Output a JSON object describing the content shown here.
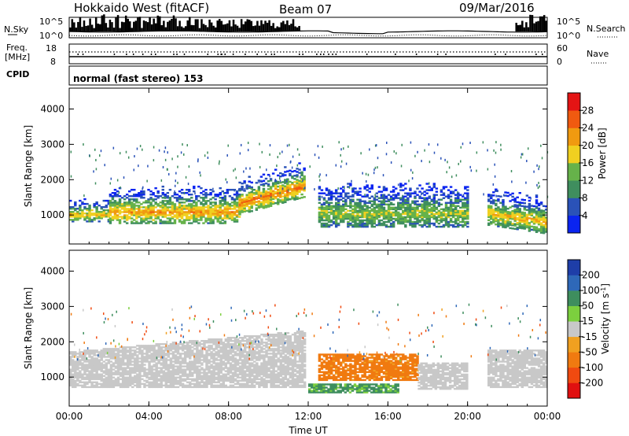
{
  "header": {
    "station": "Hokkaido West (fitACF)",
    "beam": "Beam 07",
    "date": "09/Mar/2016"
  },
  "sky_panel": {
    "left_label": "N.Sky",
    "left_ticks": [
      "10^5",
      "10^0"
    ],
    "right_ticks": [
      "10^5",
      "10^0"
    ],
    "right_label": "N.Search"
  },
  "freq_panel": {
    "left_label_1": "Freq.",
    "left_label_2": "[MHz]",
    "left_ticks": [
      "18",
      "8"
    ],
    "right_ticks": [
      "60",
      "0"
    ],
    "right_label": "Nave"
  },
  "cpid_panel": {
    "label": "CPID",
    "mode": "normal (fast stereo) 153"
  },
  "chart_data": [
    {
      "type": "heatmap",
      "name": "power",
      "ylabel": "Slant Range [km]",
      "xlabel": "Time UT",
      "xlim": [
        0,
        24
      ],
      "ylim": [
        180,
        4590
      ],
      "x_ticks": [
        "00:00",
        "04:00",
        "08:00",
        "12:00",
        "16:00",
        "20:00",
        "00:00"
      ],
      "y_ticks": [
        1000,
        2000,
        3000,
        4000
      ],
      "colorbar": {
        "label": "Power [dB]",
        "ticks": [
          4,
          8,
          12,
          16,
          20,
          24,
          28
        ],
        "colors": [
          "#0a24f0",
          "#2a52b8",
          "#3f8e5e",
          "#66b24a",
          "#f0d020",
          "#f09a10",
          "#f05a10",
          "#e41414"
        ]
      },
      "bands": [
        {
          "t0": 0.0,
          "t1": 2.0,
          "r0": 800,
          "r1": 1450,
          "peak": 20
        },
        {
          "t0": 2.0,
          "t1": 8.5,
          "r0": 750,
          "r1": 1800,
          "peak": 22
        },
        {
          "t0": 8.5,
          "t1": 11.8,
          "r0": 1000,
          "r1": 2000,
          "peak": 24
        },
        {
          "t0": 12.5,
          "t1": 20.0,
          "r0": 650,
          "r1": 1900,
          "peak": 16
        },
        {
          "t0": 21.0,
          "t1": 24.0,
          "r0": 700,
          "r1": 1750,
          "peak": 20
        }
      ]
    },
    {
      "type": "heatmap",
      "name": "velocity",
      "ylabel": "Slant Range [km]",
      "xlabel": "Time UT",
      "xlim": [
        0,
        24
      ],
      "ylim": [
        180,
        4590
      ],
      "x_ticks": [
        "00:00",
        "04:00",
        "08:00",
        "12:00",
        "16:00",
        "20:00",
        "00:00"
      ],
      "y_ticks": [
        1000,
        2000,
        3000,
        4000
      ],
      "colorbar": {
        "label": "Velocity [m s-1]",
        "ticks": [
          200,
          100,
          50,
          15,
          -15,
          -50,
          -100,
          -200
        ],
        "colors": [
          "#1e3ea8",
          "#2e68b8",
          "#3e8e5e",
          "#7ccf3e",
          "#c8c8c8",
          "#f0a020",
          "#f07a10",
          "#f04a10",
          "#e01010"
        ]
      },
      "bands": [
        {
          "t0": 0.0,
          "t1": 11.8,
          "r0": 700,
          "r1": 1700,
          "vel": 0
        },
        {
          "t0": 12.5,
          "t1": 17.5,
          "r0": 900,
          "r1": 1650,
          "vel": -45
        },
        {
          "t0": 12.0,
          "t1": 16.5,
          "r0": 550,
          "r1": 800,
          "vel": 40
        },
        {
          "t0": 17.5,
          "t1": 20.0,
          "r0": 650,
          "r1": 1400,
          "vel": 0
        },
        {
          "t0": 21.0,
          "t1": 24.0,
          "r0": 700,
          "r1": 1750,
          "vel": 0
        }
      ]
    }
  ],
  "time_axis": {
    "label": "Time UT",
    "ticks": [
      "00:00",
      "04:00",
      "08:00",
      "12:00",
      "16:00",
      "20:00",
      "00:00"
    ]
  }
}
